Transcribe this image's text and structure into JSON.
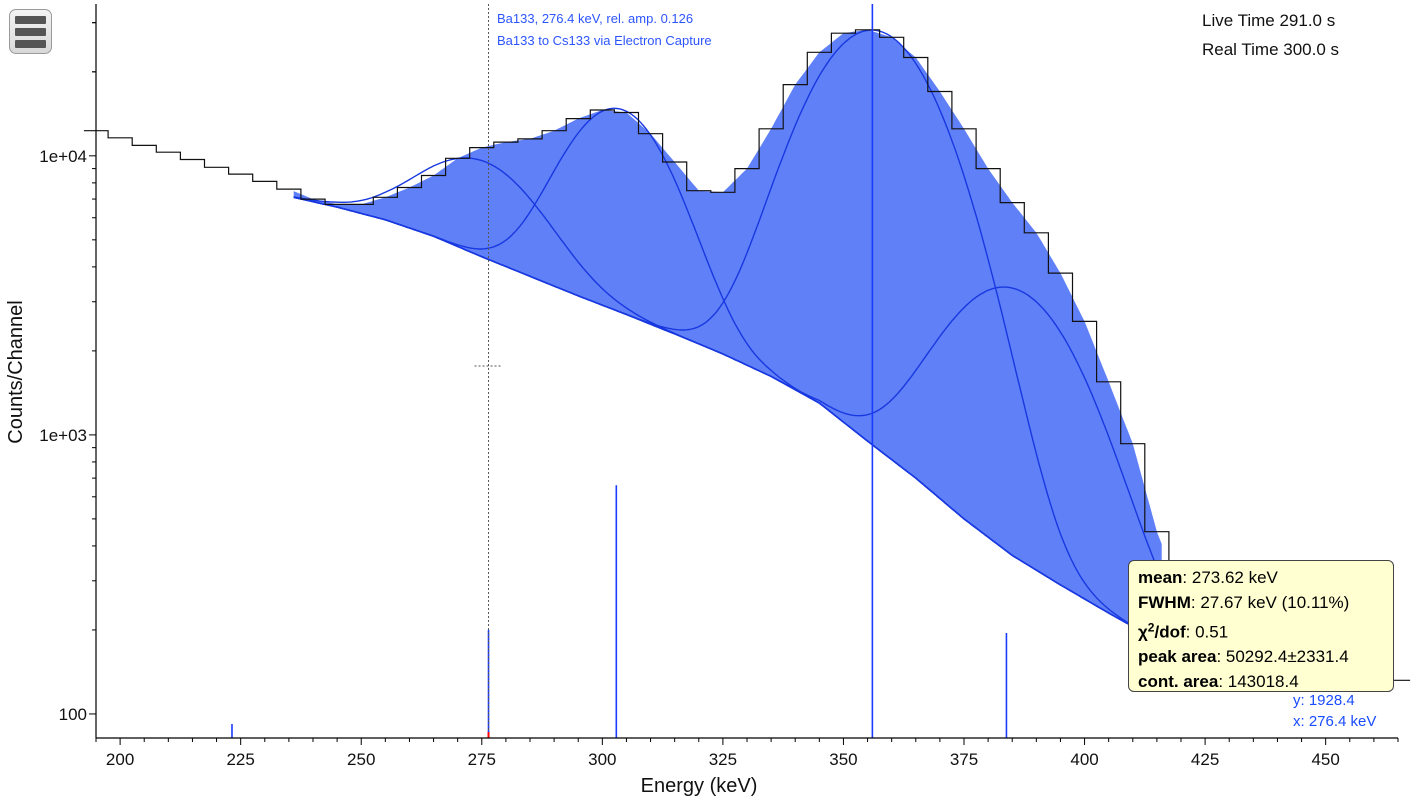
{
  "menu": {
    "icon": "hamburger-menu-icon"
  },
  "live_time": "Live Time 291.0 s",
  "real_time": "Real Time 300.0 s",
  "reference_line": {
    "energy_keV": 276.4,
    "label1": "Ba133, 276.4 keV, rel. amp. 0.126",
    "label2": "Ba133 to Cs133 via Electron Capture"
  },
  "peak_info": {
    "mean_label": "mean",
    "mean_value": ": 273.62 keV",
    "fwhm_label": "FWHM",
    "fwhm_value": ": 27.67 keV (10.11%)",
    "chi_label": "χ",
    "chi_sup": "2",
    "chi_suffix": "/dof",
    "chi_value": ": 0.51",
    "area_label": "peak area",
    "area_value": ": 50292.4±2331.4",
    "cont_label": "cont. area",
    "cont_value": ": 143018.4"
  },
  "cursor": {
    "y_text": "y: 1928.4",
    "x_text": "x: 276.4 keV"
  },
  "colors": {
    "fill": "#6080f8",
    "line": "#1838e0",
    "data": "#111111",
    "ref_line": "#1a3cff",
    "ref_marker": "#ff0000"
  },
  "chart_data": {
    "type": "line",
    "xlabel": "Energy (keV)",
    "ylabel": "Counts/Channel",
    "xlim": [
      195,
      465
    ],
    "ylim": [
      82,
      35000
    ],
    "yscale": "log",
    "x_ticks": [
      200,
      225,
      250,
      275,
      300,
      325,
      350,
      375,
      400,
      425,
      450
    ],
    "y_ticks": [
      {
        "value": 100,
        "label": "100"
      },
      {
        "value": 1000,
        "label": "1e+03"
      },
      {
        "value": 10000,
        "label": "1e+04"
      }
    ],
    "spectrum": [
      [
        195,
        12300
      ],
      [
        200,
        11600
      ],
      [
        205,
        10900
      ],
      [
        210,
        10300
      ],
      [
        215,
        9700
      ],
      [
        220,
        9100
      ],
      [
        225,
        8600
      ],
      [
        230,
        8100
      ],
      [
        235,
        7600
      ],
      [
        240,
        7000
      ],
      [
        245,
        6700
      ],
      [
        250,
        6700
      ],
      [
        255,
        7100
      ],
      [
        260,
        7700
      ],
      [
        265,
        8500
      ],
      [
        270,
        9800
      ],
      [
        275,
        10700
      ],
      [
        280,
        11200
      ],
      [
        285,
        11500
      ],
      [
        290,
        12300
      ],
      [
        295,
        13600
      ],
      [
        300,
        14600
      ],
      [
        305,
        14300
      ],
      [
        310,
        12000
      ],
      [
        315,
        9500
      ],
      [
        320,
        7500
      ],
      [
        325,
        7400
      ],
      [
        330,
        9000
      ],
      [
        335,
        12500
      ],
      [
        340,
        18000
      ],
      [
        345,
        23500
      ],
      [
        350,
        27500
      ],
      [
        355,
        28300
      ],
      [
        360,
        26600
      ],
      [
        365,
        22500
      ],
      [
        370,
        17000
      ],
      [
        375,
        12500
      ],
      [
        380,
        9000
      ],
      [
        385,
        6800
      ],
      [
        390,
        5300
      ],
      [
        395,
        3800
      ],
      [
        400,
        2550
      ],
      [
        405,
        1550
      ],
      [
        410,
        930
      ],
      [
        415,
        450
      ],
      [
        420,
        270
      ],
      [
        425,
        230
      ],
      [
        430,
        205
      ],
      [
        435,
        185
      ],
      [
        440,
        170
      ],
      [
        445,
        160
      ],
      [
        450,
        150
      ],
      [
        455,
        142
      ],
      [
        460,
        137
      ],
      [
        465,
        132
      ]
    ],
    "roi_keV": [
      236,
      416
    ],
    "continuum": [
      [
        236,
        7100
      ],
      [
        245,
        6550
      ],
      [
        255,
        5900
      ],
      [
        265,
        5150
      ],
      [
        275,
        4350
      ],
      [
        285,
        3700
      ],
      [
        295,
        3150
      ],
      [
        305,
        2700
      ],
      [
        315,
        2300
      ],
      [
        325,
        1950
      ],
      [
        335,
        1620
      ],
      [
        345,
        1300
      ],
      [
        355,
        950
      ],
      [
        365,
        700
      ],
      [
        375,
        500
      ],
      [
        385,
        370
      ],
      [
        395,
        290
      ],
      [
        405,
        230
      ],
      [
        416,
        180
      ]
    ],
    "peaks": [
      {
        "mean": 273.62,
        "fwhm": 27.67,
        "amplitude": 5300,
        "area": "50292.4±2331.4"
      },
      {
        "mean": 302.85,
        "fwhm": 24,
        "amplitude": 12000
      },
      {
        "mean": 356.01,
        "fwhm": 28.5,
        "amplitude": 27300
      },
      {
        "mean": 383.85,
        "fwhm": 30,
        "amplitude": 3000
      }
    ],
    "reference_lines": [
      {
        "energy": 223.2,
        "count": 92
      },
      {
        "energy": 276.4,
        "count": 200
      },
      {
        "energy": 302.9,
        "count": 660
      },
      {
        "energy": 356.0,
        "count": 35000
      },
      {
        "energy": 383.8,
        "count": 195
      }
    ]
  }
}
